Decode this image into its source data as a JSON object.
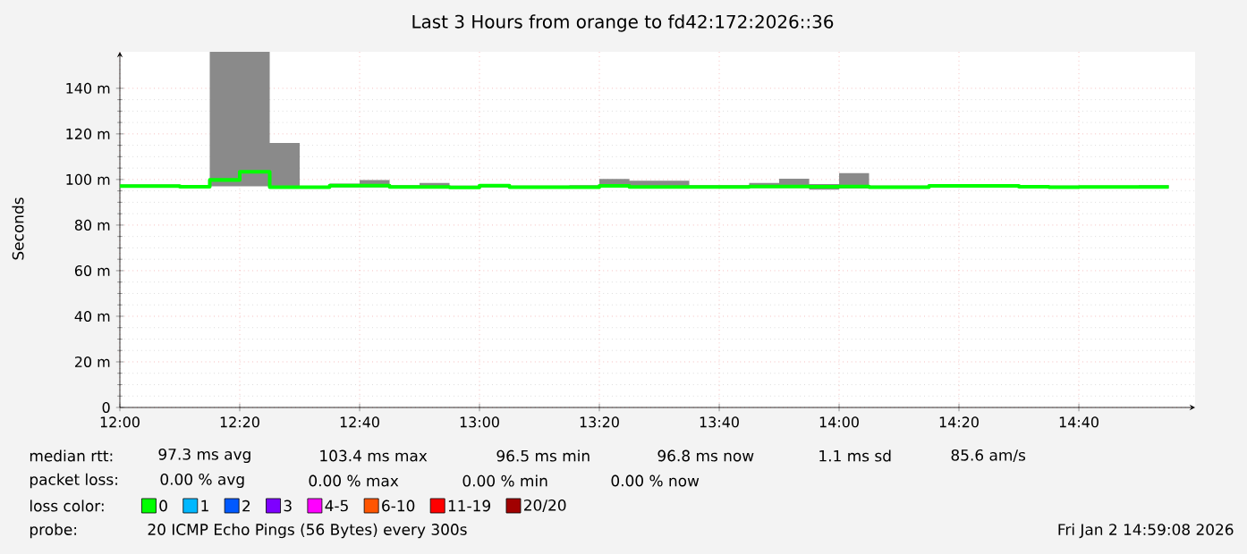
{
  "chart_data": {
    "type": "step",
    "title": "Last 3 Hours from orange to fd42:172:2026::36",
    "ylabel": "Seconds",
    "x": [
      12,
      12.0833,
      12.1667,
      12.25,
      12.3333,
      12.4167,
      12.5,
      12.5833,
      12.6667,
      12.75,
      12.8333,
      12.9167,
      13,
      13.0833,
      13.1667,
      13.25,
      13.3333,
      13.4167,
      13.5,
      13.5833,
      13.6667,
      13.75,
      13.8333,
      13.9167,
      14,
      14.0833,
      14.1667,
      14.25,
      14.3333,
      14.4167,
      14.5,
      14.5833,
      14.6667,
      14.75,
      14.8333,
      14.9167
    ],
    "xlim": [
      12,
      14.99
    ],
    "xticks": [
      {
        "value": 12,
        "label": "12:00"
      },
      {
        "value": 12.3333,
        "label": "12:20"
      },
      {
        "value": 12.6667,
        "label": "12:40"
      },
      {
        "value": 13,
        "label": "13:00"
      },
      {
        "value": 13.3333,
        "label": "13:20"
      },
      {
        "value": 13.6667,
        "label": "13:40"
      },
      {
        "value": 14,
        "label": "14:00"
      },
      {
        "value": 14.3333,
        "label": "14:20"
      },
      {
        "value": 14.6667,
        "label": "14:40"
      }
    ],
    "ylim": [
      0,
      156
    ],
    "yticks": [
      0,
      {
        "value": 20,
        "label": "20 m"
      },
      {
        "value": 40,
        "label": "40 m"
      },
      {
        "value": 60,
        "label": "60 m"
      },
      {
        "value": 80,
        "label": "80 m"
      },
      {
        "value": 100,
        "label": "100 m"
      },
      {
        "value": 120,
        "label": "120 m"
      },
      {
        "value": 140,
        "label": "140 m"
      }
    ],
    "grid": true,
    "legend": "bottom",
    "legend_title": "loss color:",
    "series": [
      {
        "name": "0",
        "color": "#00ff00",
        "values": [
          97.1,
          97.1,
          96.8,
          99.8,
          103.4,
          96.6,
          96.6,
          97.3,
          97.3,
          96.7,
          96.7,
          96.5,
          97.3,
          96.6,
          96.6,
          96.6,
          97.2,
          96.7,
          96.7,
          96.7,
          96.7,
          96.9,
          96.9,
          96.8,
          96.9,
          96.6,
          96.6,
          97.2,
          97.2,
          97.2,
          96.8,
          96.6,
          96.7,
          96.7,
          96.7,
          96.7
        ],
        "lower": [
          96.5,
          96.5,
          96.3,
          97,
          97,
          96,
          96.2,
          96.5,
          96.5,
          96.2,
          96.2,
          96,
          96.5,
          96.2,
          96.2,
          96.2,
          96.5,
          96.2,
          96.2,
          96.2,
          96,
          96.3,
          96.3,
          95.5,
          96,
          96.2,
          96.2,
          96.6,
          96.6,
          96.6,
          96.3,
          96.2,
          96.2,
          96.2,
          96.2,
          96.2
        ],
        "upper": [
          97.8,
          97.8,
          97.5,
          156,
          156,
          116,
          97.2,
          98.2,
          99.8,
          97.5,
          98.5,
          97.3,
          98,
          97.3,
          97.3,
          97.5,
          100.2,
          99.5,
          99.5,
          97.5,
          97.5,
          98.5,
          100.3,
          98,
          102.8,
          97.3,
          97.3,
          98,
          98,
          98,
          97.5,
          97.3,
          97.3,
          97.3,
          97.5,
          97.5
        ]
      },
      {
        "name": "1",
        "color": "#00b8ff",
        "values": [
          null,
          null,
          null,
          null,
          null,
          null,
          null,
          null,
          null,
          null,
          null,
          null,
          null,
          null,
          null,
          null,
          null,
          null,
          null,
          null,
          null,
          null,
          null,
          null,
          null,
          null,
          null,
          null,
          null,
          null,
          null,
          null,
          null,
          null,
          null,
          null
        ]
      },
      {
        "name": "2",
        "color": "#0059ff",
        "values": [
          null,
          null,
          null,
          null,
          null,
          null,
          null,
          null,
          null,
          null,
          null,
          null,
          null,
          null,
          null,
          null,
          null,
          null,
          null,
          null,
          null,
          null,
          null,
          null,
          null,
          null,
          null,
          null,
          null,
          null,
          null,
          null,
          null,
          null,
          null,
          null
        ]
      },
      {
        "name": "3",
        "color": "#7e00ff",
        "values": [
          null,
          null,
          null,
          null,
          null,
          null,
          null,
          null,
          null,
          null,
          null,
          null,
          null,
          null,
          null,
          null,
          null,
          null,
          null,
          null,
          null,
          null,
          null,
          null,
          null,
          null,
          null,
          null,
          null,
          null,
          null,
          null,
          null,
          null,
          null,
          null
        ]
      },
      {
        "name": "4-5",
        "color": "#ff00ff",
        "values": [
          null,
          null,
          null,
          null,
          null,
          null,
          null,
          null,
          null,
          null,
          null,
          null,
          null,
          null,
          null,
          null,
          null,
          null,
          null,
          null,
          null,
          null,
          null,
          null,
          null,
          null,
          null,
          null,
          null,
          null,
          null,
          null,
          null,
          null,
          null,
          null
        ]
      },
      {
        "name": "6-10",
        "color": "#ff5500",
        "values": [
          null,
          null,
          null,
          null,
          null,
          null,
          null,
          null,
          null,
          null,
          null,
          null,
          null,
          null,
          null,
          null,
          null,
          null,
          null,
          null,
          null,
          null,
          null,
          null,
          null,
          null,
          null,
          null,
          null,
          null,
          null,
          null,
          null,
          null,
          null,
          null
        ]
      },
      {
        "name": "11-19",
        "color": "#ff0000",
        "values": [
          null,
          null,
          null,
          null,
          null,
          null,
          null,
          null,
          null,
          null,
          null,
          null,
          null,
          null,
          null,
          null,
          null,
          null,
          null,
          null,
          null,
          null,
          null,
          null,
          null,
          null,
          null,
          null,
          null,
          null,
          null,
          null,
          null,
          null,
          null,
          null
        ]
      },
      {
        "name": "20/20",
        "color": "#a10000",
        "values": [
          null,
          null,
          null,
          null,
          null,
          null,
          null,
          null,
          null,
          null,
          null,
          null,
          null,
          null,
          null,
          null,
          null,
          null,
          null,
          null,
          null,
          null,
          null,
          null,
          null,
          null,
          null,
          null,
          null,
          null,
          null,
          null,
          null,
          null,
          null,
          null
        ]
      }
    ],
    "annotations": [
      "median rtt:",
      "97.3 ms avg",
      "103.4 ms max",
      "96.5 ms min",
      "96.8 ms now",
      "1.1 ms sd",
      "85.6 am/s",
      "packet loss:",
      "0.00 % avg",
      "0.00 % max",
      "0.00 % min",
      "0.00 % now",
      "probe:",
      "20 ICMP Echo Pings (56 Bytes) every 300s",
      "Fri Jan 2 14:59:08 2026"
    ]
  }
}
